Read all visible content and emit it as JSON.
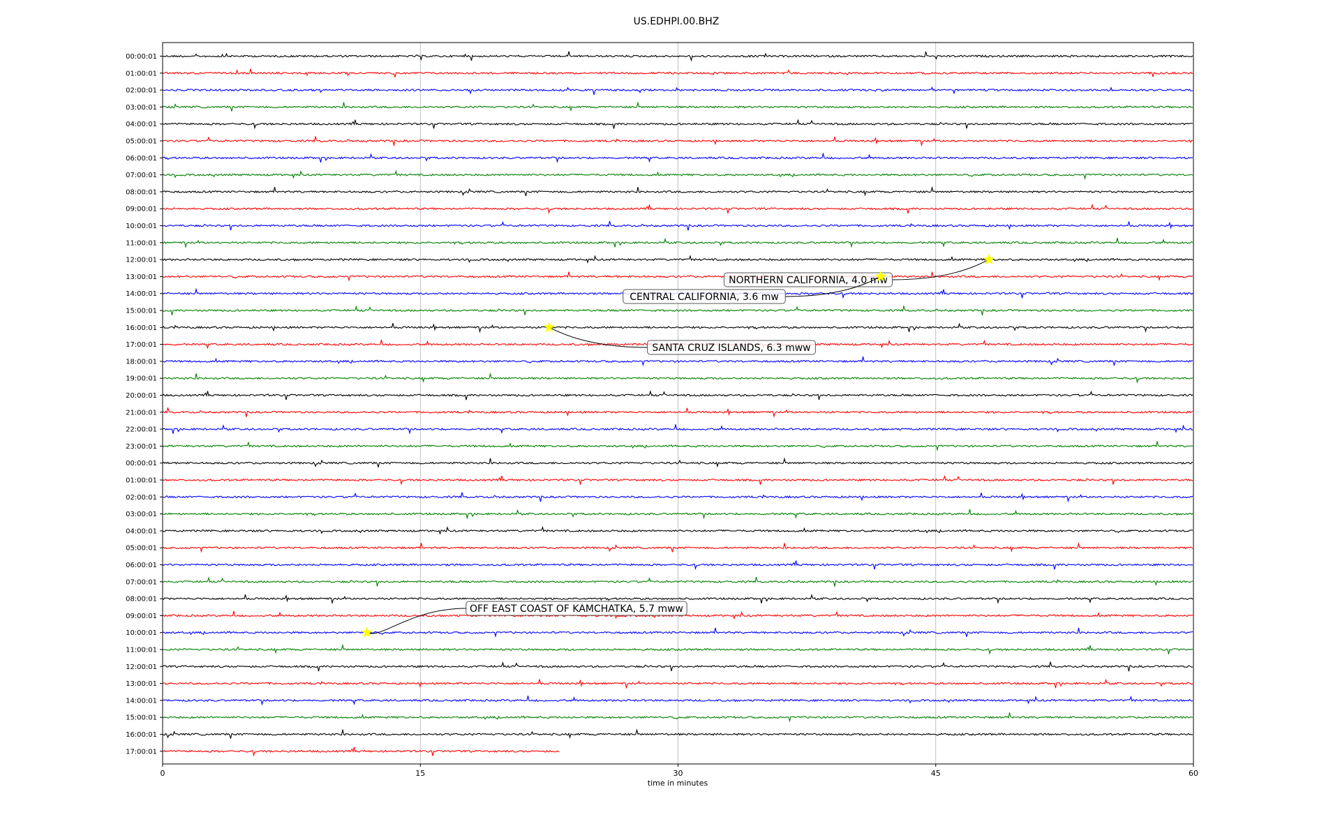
{
  "chart_data": {
    "type": "line",
    "title": "US.EDHPI.00.BHZ",
    "xlabel": "time in minutes",
    "ylabel": "",
    "xlim": [
      0,
      60
    ],
    "x_ticks": [
      0,
      15,
      30,
      45,
      60
    ],
    "grid": "vertical",
    "row_labels": [
      "00:00:01",
      "01:00:01",
      "02:00:01",
      "03:00:01",
      "04:00:01",
      "05:00:01",
      "06:00:01",
      "07:00:01",
      "08:00:01",
      "09:00:01",
      "10:00:01",
      "11:00:01",
      "12:00:01",
      "13:00:01",
      "14:00:01",
      "15:00:01",
      "16:00:01",
      "17:00:01",
      "18:00:01",
      "19:00:01",
      "20:00:01",
      "21:00:01",
      "22:00:01",
      "23:00:01",
      "00:00:01",
      "01:00:01",
      "02:00:01",
      "03:00:01",
      "04:00:01",
      "05:00:01",
      "06:00:01",
      "07:00:01",
      "08:00:01",
      "09:00:01",
      "10:00:01",
      "11:00:01",
      "12:00:01",
      "13:00:01",
      "14:00:01",
      "15:00:01",
      "16:00:01",
      "17:00:01"
    ],
    "row_colors": [
      "#000000",
      "#ff0000",
      "#0000ff",
      "#008000"
    ],
    "last_row_end_minute": 23.1,
    "events": [
      {
        "label": "NORTHERN CALIFORNIA, 4.0 mw",
        "row": 12,
        "minute": 48.1
      },
      {
        "label": "CENTRAL CALIFORNIA, 3.6 mw",
        "row": 13,
        "minute": 41.8
      },
      {
        "label": "SANTA CRUZ ISLANDS, 6.3 mww",
        "row": 16,
        "minute": 22.5
      },
      {
        "label": "OFF EAST COAST OF KAMCHATKA, 5.7 mww",
        "row": 34,
        "minute": 11.9
      }
    ]
  }
}
